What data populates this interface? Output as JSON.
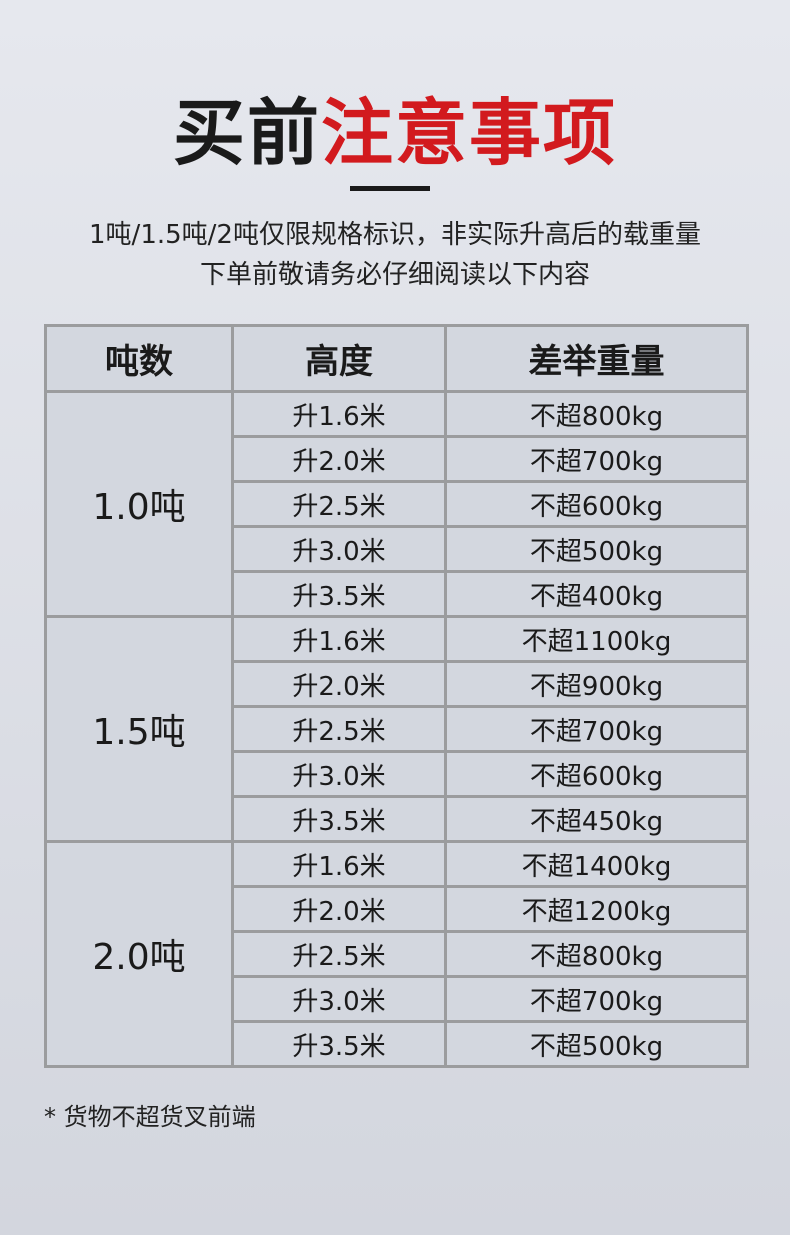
{
  "title": {
    "black": "买前",
    "red": "注意事项",
    "red_color": "#d21a1e"
  },
  "subtitle": [
    "1吨/1.5吨/2吨仅限规格标识，非实际升高后的载重量",
    "下单前敬请务必仔细阅读以下内容"
  ],
  "table": {
    "headers": [
      "吨数",
      "高度",
      "差举重量"
    ],
    "groups": [
      {
        "ton": "1.0吨",
        "rows": [
          [
            "升1.6米",
            "不超800kg"
          ],
          [
            "升2.0米",
            "不超700kg"
          ],
          [
            "升2.5米",
            "不超600kg"
          ],
          [
            "升3.0米",
            "不超500kg"
          ],
          [
            "升3.5米",
            "不超400kg"
          ]
        ]
      },
      {
        "ton": "1.5吨",
        "rows": [
          [
            "升1.6米",
            "不超1100kg"
          ],
          [
            "升2.0米",
            "不超900kg"
          ],
          [
            "升2.5米",
            "不超700kg"
          ],
          [
            "升3.0米",
            "不超600kg"
          ],
          [
            "升3.5米",
            "不超450kg"
          ]
        ]
      },
      {
        "ton": "2.0吨",
        "rows": [
          [
            "升1.6米",
            "不超1400kg"
          ],
          [
            "升2.0米",
            "不超1200kg"
          ],
          [
            "升2.5米",
            "不超800kg"
          ],
          [
            "升3.0米",
            "不超700kg"
          ],
          [
            "升3.5米",
            "不超500kg"
          ]
        ]
      }
    ]
  },
  "note": "* 货物不超货叉前端"
}
